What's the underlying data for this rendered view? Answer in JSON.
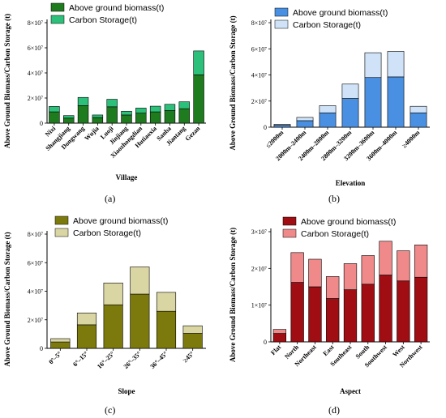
{
  "panel_letters": [
    "(a)",
    "(b)",
    "(c)",
    "(d)"
  ],
  "chart_data": [
    {
      "type": "bar",
      "stacked": true,
      "xlabel": "Village",
      "ylabel": "Above Ground Biomass/Carbon Storage (t)",
      "yticks": [
        "0",
        "2×10⁷",
        "4×10⁷",
        "6×10⁷",
        "8×10⁷"
      ],
      "ylim": [
        0,
        80000000
      ],
      "categories": [
        "Nixi",
        "Shangjiang",
        "Dongwang",
        "Wujia",
        "Luoji",
        "Jinjiang",
        "Xiaozhongdian",
        "Hutiaoxia",
        "Sanba",
        "Jiantang",
        "Gezan"
      ],
      "series": [
        {
          "name": "Above ground biomass(t)",
          "color": "#1e7b1e",
          "values": [
            9000000,
            4000000,
            14000000,
            4500000,
            13000000,
            6500000,
            8000000,
            9000000,
            10000000,
            11500000,
            38500000
          ]
        },
        {
          "name": "Carbon Storage(t)",
          "color": "#2cc07a",
          "values": [
            4300000,
            2000000,
            6500000,
            2000000,
            6000000,
            3000000,
            4000000,
            4500000,
            5000000,
            5500000,
            19000000
          ]
        }
      ],
      "legend_position": "top-left"
    },
    {
      "type": "bar",
      "stacked": true,
      "xlabel": "Elevation",
      "ylabel": "Above Ground Biomass/Carbon Storage (t)",
      "yticks": [
        "0",
        "2×10⁷",
        "4×10⁷",
        "6×10⁷",
        "8×10⁷"
      ],
      "ylim": [
        0,
        80000000
      ],
      "categories": [
        "≤2000m",
        "2000m–2400m",
        "2400m–2800m",
        "2800m–3200m",
        "3200m–3600m",
        "3600m–4000m",
        "≥4000m"
      ],
      "series": [
        {
          "name": "Above ground biomass(t)",
          "color": "#4a90e2",
          "values": [
            1500000,
            5000000,
            11000000,
            22000000,
            38000000,
            38500000,
            11000000
          ]
        },
        {
          "name": "Carbon Storage(t)",
          "color": "#cfe2f7",
          "values": [
            700000,
            2500000,
            5500000,
            11000000,
            19000000,
            19500000,
            5000000
          ]
        }
      ],
      "legend_position": "top-left"
    },
    {
      "type": "bar",
      "stacked": true,
      "xlabel": "Slope",
      "ylabel": "Above Ground Biomass/Carbon Storage (t)",
      "yticks": [
        "0",
        "2×10⁷",
        "4×10⁷",
        "6×10⁷",
        "8×10⁷"
      ],
      "ylim": [
        0,
        80000000
      ],
      "categories": [
        "0°–5°",
        "6°–15°",
        "16°–25°",
        "26°–35°",
        "36°–45°",
        "≥45°"
      ],
      "series": [
        {
          "name": "Above ground biomass(t)",
          "color": "#7d7a0d",
          "values": [
            4500000,
            16500000,
            30500000,
            38000000,
            26000000,
            10500000
          ]
        },
        {
          "name": "Carbon Storage(t)",
          "color": "#d9d6a3",
          "values": [
            2300000,
            8300000,
            15300000,
            19000000,
            13200000,
            5300000
          ]
        }
      ],
      "legend_position": "top-left"
    },
    {
      "type": "bar",
      "stacked": true,
      "xlabel": "Aspect",
      "ylabel": "Above Ground Biomass/Carbon Storage (t)",
      "yticks": [
        "0",
        "1×10⁷",
        "2×10⁷",
        "3×10⁷"
      ],
      "ylim": [
        0,
        30000000
      ],
      "categories": [
        "Flat",
        "North",
        "Northeast",
        "East",
        "Southeast",
        "South",
        "Southwest",
        "West",
        "Northwest"
      ],
      "series": [
        {
          "name": "Above ground biomass(t)",
          "color": "#a00d12",
          "values": [
            2300000,
            16200000,
            15000000,
            11800000,
            14200000,
            15700000,
            18200000,
            16600000,
            17600000
          ]
        },
        {
          "name": "Carbon Storage(t)",
          "color": "#f08a8a",
          "values": [
            1100000,
            8100000,
            7500000,
            6000000,
            7100000,
            7800000,
            9200000,
            8200000,
            8800000
          ]
        }
      ],
      "legend_position": "top-left"
    }
  ]
}
